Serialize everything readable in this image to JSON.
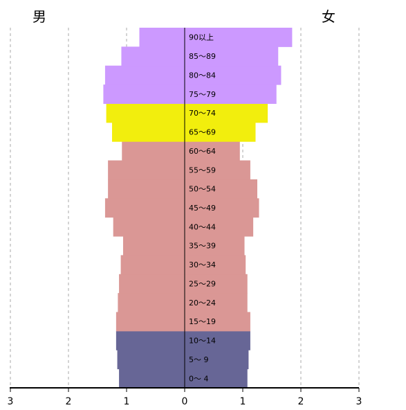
{
  "legend": {
    "male": "男",
    "female": "女"
  },
  "colors": {
    "elderly_75plus": "#cc99ff",
    "elderly_65_74": "#f2ee0d",
    "working_age": "#da9795",
    "children": "#676696",
    "grid": "#aaaaaa",
    "axis": "#000000"
  },
  "chart_data": {
    "type": "bar",
    "orientation": "horizontal-population-pyramid",
    "xlim": [
      -3,
      3
    ],
    "x_ticks": [
      "3",
      "2",
      "1",
      "0",
      "1",
      "2",
      "3"
    ],
    "categories": [
      "0〜 4",
      "5〜 9",
      "10〜14",
      "15〜19",
      "20〜24",
      "25〜29",
      "30〜34",
      "35〜39",
      "40〜44",
      "45〜49",
      "50〜54",
      "55〜59",
      "60〜64",
      "65〜69",
      "70〜74",
      "75〜79",
      "80〜84",
      "85〜89",
      "90以上"
    ],
    "series": [
      {
        "name": "男",
        "values": [
          1.13,
          1.16,
          1.18,
          1.18,
          1.15,
          1.13,
          1.1,
          1.06,
          1.23,
          1.37,
          1.32,
          1.32,
          1.08,
          1.25,
          1.35,
          1.4,
          1.37,
          1.09,
          0.78
        ]
      },
      {
        "name": "女",
        "values": [
          1.08,
          1.1,
          1.13,
          1.13,
          1.08,
          1.08,
          1.05,
          1.03,
          1.18,
          1.28,
          1.25,
          1.13,
          0.95,
          1.22,
          1.43,
          1.58,
          1.66,
          1.61,
          1.85
        ]
      }
    ],
    "age_groups": {
      "children": [
        "0〜 4",
        "5〜 9",
        "10〜14"
      ],
      "working_age": [
        "15〜19",
        "20〜24",
        "25〜29",
        "30〜34",
        "35〜39",
        "40〜44",
        "45〜49",
        "50〜54",
        "55〜59",
        "60〜64"
      ],
      "elderly_65_74": [
        "65〜69",
        "70〜74"
      ],
      "elderly_75plus": [
        "75〜79",
        "80〜84",
        "85〜89",
        "90以上"
      ]
    },
    "grid": true
  }
}
